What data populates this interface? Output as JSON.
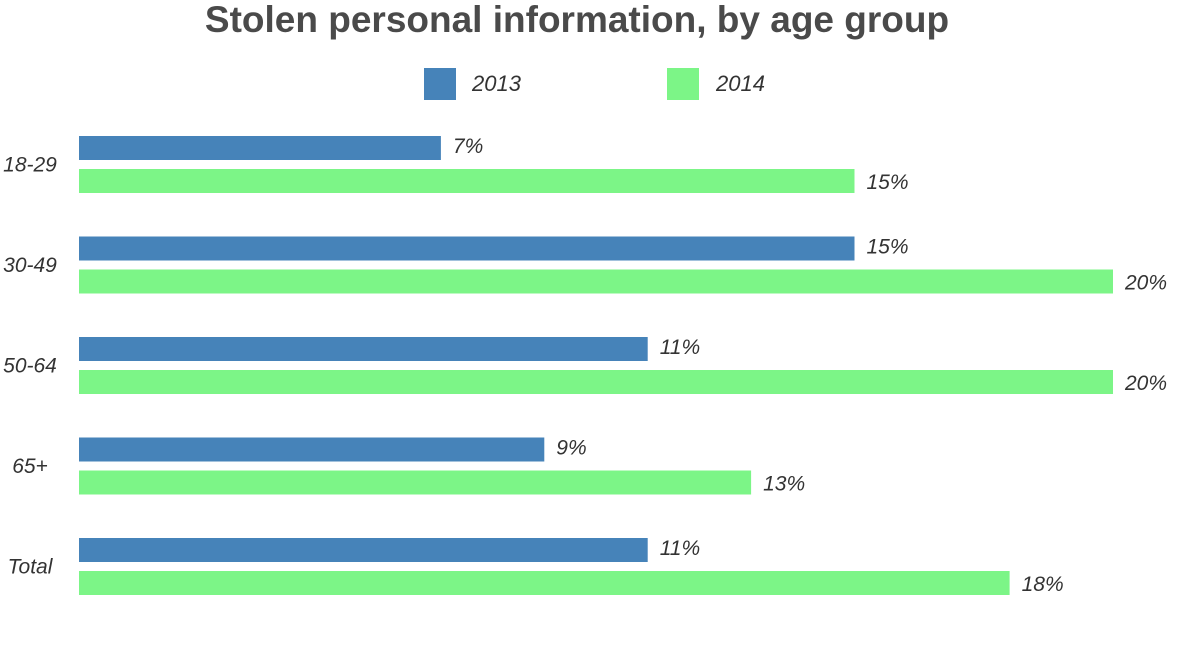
{
  "chart_data": {
    "type": "bar",
    "orientation": "horizontal",
    "title": "Stolen personal information, by age group",
    "categories": [
      "18-29",
      "30-49",
      "50-64",
      "65+",
      "Total"
    ],
    "series": [
      {
        "name": "2013",
        "color": "#4683b9",
        "values": [
          7,
          15,
          11,
          9,
          11
        ],
        "labels": [
          "7%",
          "15%",
          "11%",
          "9%",
          "11%"
        ]
      },
      {
        "name": "2014",
        "color": "#7cf587",
        "values": [
          15,
          20,
          20,
          13,
          18
        ],
        "labels": [
          "15%",
          "20%",
          "20%",
          "13%",
          "18%"
        ]
      }
    ],
    "xlim": [
      0,
      20
    ],
    "grid": false,
    "legend_position": "top-center"
  }
}
